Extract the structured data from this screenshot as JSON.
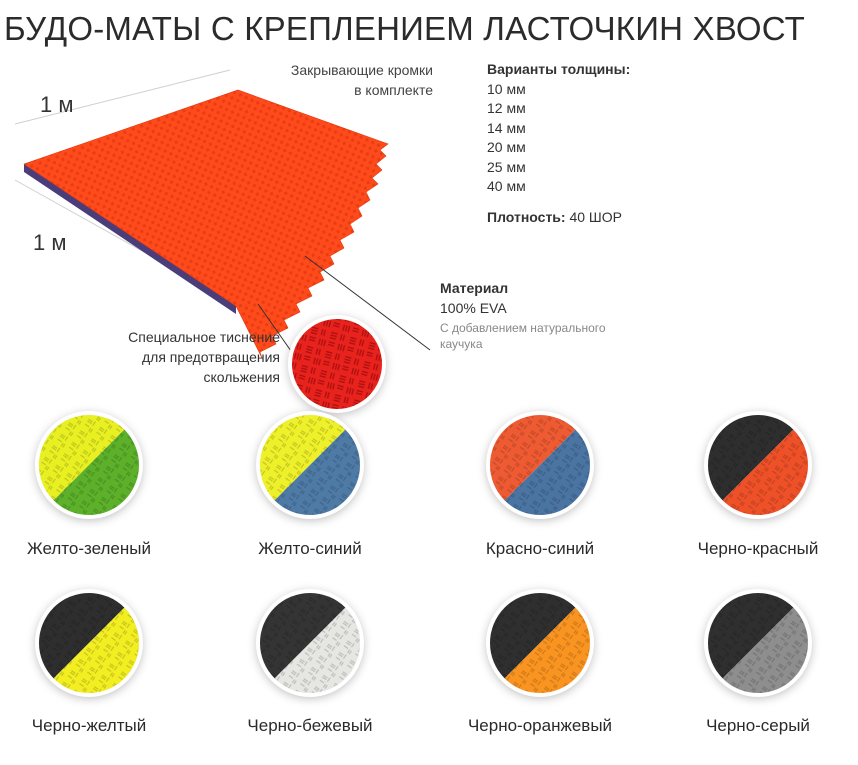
{
  "title": "БУДО-МАТЫ С КРЕПЛЕНИЕМ ЛАСТОЧКИН ХВОСТ",
  "mat": {
    "dimension_top": "1 м",
    "dimension_left": "1 м",
    "color": "#ff4a1c"
  },
  "edges_note": {
    "line1": "Закрывающие кромки",
    "line2": "в комплекте"
  },
  "thickness": {
    "header": "Варианты толщины:",
    "options": [
      "10 мм",
      "12 мм",
      "14 мм",
      "20 мм",
      "25 мм",
      "40 мм"
    ]
  },
  "density": {
    "label": "Плотность:",
    "value": " 40 ШОР"
  },
  "material": {
    "header": "Материал",
    "value": "100% EVA",
    "note": "С добавлением натурального каучука"
  },
  "emboss_note": {
    "line1": "Специальное тиснение",
    "line2": "для предотвращения",
    "line3": "скольжения",
    "color": "#e8231e"
  },
  "colors": [
    {
      "label": "Желто-зеленый",
      "c1": "#e8f022",
      "c2": "#5cb02a"
    },
    {
      "label": "Желто-синий",
      "c1": "#eef02a",
      "c2": "#4e7aa6"
    },
    {
      "label": "Красно-синий",
      "c1": "#ee5a32",
      "c2": "#4a74a2"
    },
    {
      "label": "Черно-красный",
      "c1": "#2e2e2e",
      "c2": "#ee5028"
    },
    {
      "label": "Черно-желтый",
      "c1": "#2e2e2e",
      "c2": "#f2ee22"
    },
    {
      "label": "Черно-бежевый",
      "c1": "#343434",
      "c2": "#e6e6e3"
    },
    {
      "label": "Черно-оранжевый",
      "c1": "#2f2f2f",
      "c2": "#fa9420"
    },
    {
      "label": "Черно-серый",
      "c1": "#2f2f2f",
      "c2": "#8e8e8e"
    }
  ]
}
